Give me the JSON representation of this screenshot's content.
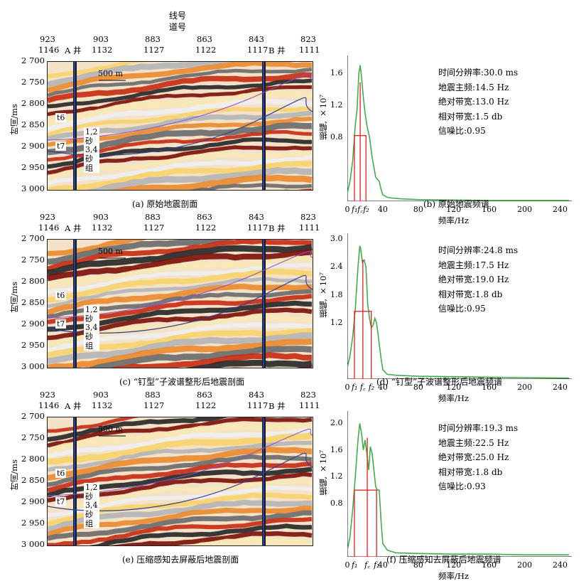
{
  "header": {
    "line_label": "线号",
    "trace_label": "道号"
  },
  "seismic_axis": {
    "line_numbers": [
      "923",
      "903",
      "883",
      "863",
      "843",
      "823"
    ],
    "trace_numbers": [
      "1146",
      "1132",
      "1127",
      "1122",
      "1117",
      "1111"
    ],
    "wells": [
      "A 井",
      "B 井"
    ],
    "y_title": "时间/ms",
    "y_ticks": [
      "2 700",
      "2 750",
      "2 800",
      "2 850",
      "2 900",
      "2 950",
      "3 000"
    ],
    "scale_bar": "500 m",
    "horizons": [
      "t6",
      "t7"
    ],
    "sand_groups": [
      "1,2 砂组",
      "3,4 砂组"
    ]
  },
  "panels": [
    {
      "caption": "(a) 原始地震剖面",
      "spec_caption": "(b) 原始地震频谱",
      "ann": [
        "时间分辨率:30.0 ms",
        "地震主频:14.5 Hz",
        "绝对带宽:13.0 Hz",
        "相对带宽:1.5 db",
        "信噪比:0.95"
      ],
      "y_ticks": [
        "0.8",
        "1.2",
        "1.6"
      ]
    },
    {
      "caption": "(c) “钉型”子波谱整形后地震剖面",
      "spec_caption": "(d) “钉型”子波谱整形后地震频谱",
      "ann": [
        "时间分辨率:24.8 ms",
        "地震主频:17.5 Hz",
        "绝对带宽:19.0 Hz",
        "相对带宽:1.8 db",
        "信噪比:0.95"
      ],
      "y_ticks": [
        "1.2",
        "1.8",
        "2.4",
        "3.0"
      ]
    },
    {
      "caption": "(e) 压缩感知去屏蔽后地震剖面",
      "spec_caption": "(f) 压缩感知去屏蔽后地震频谱",
      "ann": [
        "时间分辨率:19.3 ms",
        "地震主频:22.5 Hz",
        "绝对带宽:25.0 Hz",
        "相对带宽:1.8 db",
        "信噪比:0.93"
      ],
      "y_ticks": [
        "0.8",
        "1.2",
        "1.6",
        "2.0"
      ]
    }
  ],
  "spectrum_axis": {
    "y_title": "振幅, ×10⁷",
    "x_title": "频率/Hz",
    "x_ticks": [
      "0",
      "40",
      "80",
      "120",
      "160",
      "200",
      "240"
    ],
    "f_labels": [
      "f₁",
      "f꜀",
      "f₂"
    ]
  },
  "chart_data": [
    {
      "type": "line",
      "title": "(b) 原始地震频谱",
      "xlabel": "频率/Hz",
      "ylabel": "振幅, ×10⁷",
      "xlim": [
        0,
        250
      ],
      "ylim": [
        0,
        1.75
      ],
      "x": [
        0,
        3,
        6,
        9,
        11,
        13,
        14.5,
        16,
        18,
        20,
        22,
        25,
        28,
        32,
        36,
        38,
        40,
        45,
        50,
        60,
        80,
        120,
        160,
        200,
        250
      ],
      "series": [
        {
          "name": "spectrum",
          "values": [
            0.1,
            0.25,
            0.5,
            0.95,
            1.15,
            1.6,
            1.7,
            1.55,
            1.3,
            1.1,
            0.95,
            0.8,
            0.55,
            0.3,
            0.25,
            0.15,
            0.08,
            0.05,
            0.04,
            0.03,
            0.02,
            0.015,
            0.01,
            0.01,
            0.01
          ]
        }
      ],
      "markers": {
        "f1": 8,
        "fc": 14.5,
        "f2": 21,
        "half_amplitude": 0.82
      }
    },
    {
      "type": "line",
      "title": "(d) “钉型”子波谱整形后地震频谱",
      "xlabel": "频率/Hz",
      "ylabel": "振幅, ×10⁷",
      "xlim": [
        0,
        250
      ],
      "ylim": [
        0,
        3.0
      ],
      "x": [
        0,
        3,
        6,
        9,
        12,
        14,
        15,
        17,
        19,
        21,
        23,
        25,
        27,
        29,
        31,
        33,
        35,
        38,
        40,
        45,
        55,
        80,
        120,
        160,
        200,
        250
      ],
      "series": [
        {
          "name": "spectrum",
          "values": [
            0.25,
            0.5,
            0.9,
            1.5,
            2.4,
            2.85,
            2.8,
            2.5,
            2.55,
            2.4,
            1.6,
            1.3,
            1.1,
            1.15,
            1.3,
            1.2,
            0.9,
            0.45,
            0.2,
            0.1,
            0.08,
            0.06,
            0.05,
            0.04,
            0.03,
            0.02
          ]
        }
      ],
      "markers": {
        "f1": 8,
        "fc": 17.5,
        "f2": 27,
        "half_amplitude": 1.45
      }
    },
    {
      "type": "line",
      "title": "(f) 压缩感知去屏蔽后地震频谱",
      "xlabel": "频率/Hz",
      "ylabel": "振幅, ×10⁷",
      "xlim": [
        0,
        250
      ],
      "ylim": [
        0,
        2.1
      ],
      "x": [
        0,
        3,
        6,
        9,
        12,
        14,
        16,
        18,
        20,
        22,
        24,
        26,
        28,
        30,
        32,
        34,
        36,
        38,
        40,
        45,
        55,
        80,
        120,
        160,
        200,
        250
      ],
      "series": [
        {
          "name": "spectrum",
          "values": [
            0.1,
            0.3,
            0.7,
            1.2,
            1.75,
            2.0,
            1.85,
            1.6,
            1.75,
            1.55,
            1.3,
            1.65,
            1.55,
            1.3,
            1.05,
            1.0,
            1.0,
            0.55,
            0.2,
            0.1,
            0.06,
            0.05,
            0.04,
            0.04,
            0.03,
            0.03
          ]
        }
      ],
      "markers": {
        "f1": 8,
        "fc": 22.5,
        "f2": 33,
        "half_amplitude": 1.0
      }
    }
  ]
}
